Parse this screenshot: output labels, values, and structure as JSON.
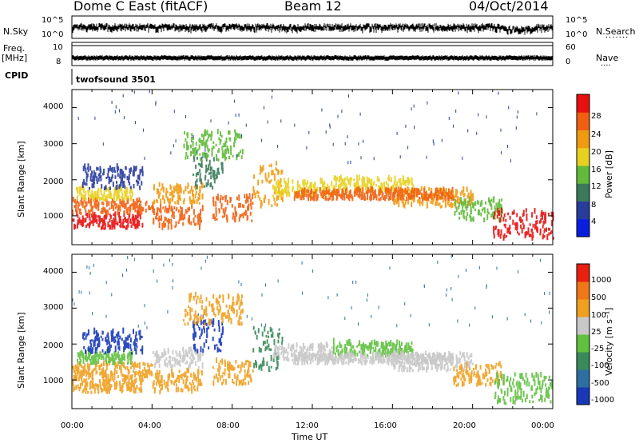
{
  "header": {
    "title": "Dome C East (fitACF)",
    "beam": "Beam 12",
    "date": "04/Oct/2014"
  },
  "strips": {
    "nsky_label": "N.Sky",
    "nsky_ticks": [
      "10^5",
      "10^0"
    ],
    "nsearch_label": "N.Search",
    "nsearch_ticks": [
      "10^5",
      "10^0"
    ],
    "freq_label": "Freq.",
    "freq_unit": "[MHz]",
    "freq_ticks": [
      "10",
      "8"
    ],
    "nave_label": "Nave",
    "nave_ticks": [
      "60",
      "0"
    ],
    "cpid_label": "CPID",
    "cpid_value": "twofsound 3501"
  },
  "chart_data": [
    {
      "type": "heatmap",
      "name": "power-panel",
      "ylabel": "Slant Range [km]",
      "ylim": [
        200,
        4500
      ],
      "yticks": [
        "4000",
        "3000",
        "2000",
        "1000"
      ],
      "xlim": [
        0,
        24
      ],
      "colorbar_label": "Power [dB]",
      "colorbar_ticks": [
        "28",
        "24",
        "20",
        "16",
        "12",
        "8",
        "4"
      ],
      "colors": [
        "#0a1ee0",
        "#283c9c",
        "#3a7a5a",
        "#62ba3c",
        "#e8d020",
        "#f09a10",
        "#f06010",
        "#e81010"
      ]
    },
    {
      "type": "heatmap",
      "name": "velocity-panel",
      "ylabel": "Slant Range [km]",
      "ylim": [
        200,
        4500
      ],
      "yticks": [
        "4000",
        "3000",
        "2000",
        "1000"
      ],
      "xlim": [
        0,
        24
      ],
      "xticks": [
        "00:00",
        "04:00",
        "08:00",
        "12:00",
        "16:00",
        "20:00",
        "00:00"
      ],
      "xlabel": "Time UT",
      "colorbar_label": "Velocity [m s⁻¹]",
      "colorbar_ticks": [
        "1000",
        "500",
        "100",
        "25",
        "-25",
        "-100",
        "-500",
        "-1000"
      ],
      "colors": [
        "#1838b8",
        "#2f6ea0",
        "#3a8a5a",
        "#60c040",
        "#c8c8c8",
        "#f0a020",
        "#f07818",
        "#e82010"
      ]
    }
  ]
}
